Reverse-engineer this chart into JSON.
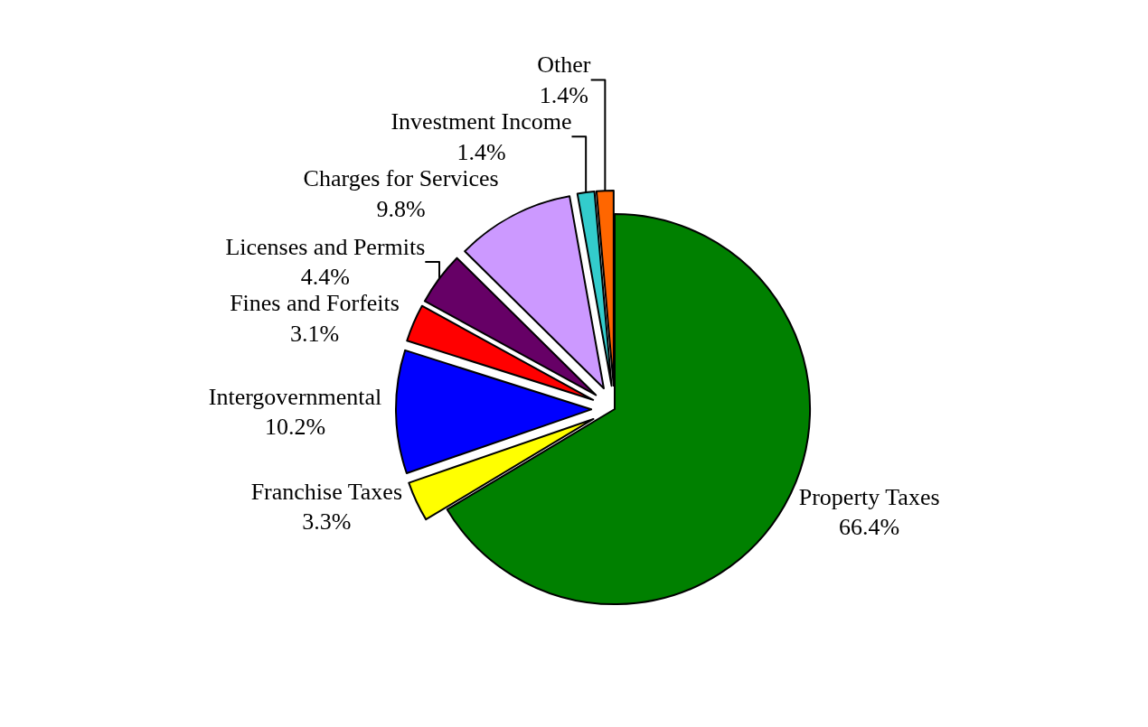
{
  "chart_data": {
    "type": "pie",
    "categories": [
      "Property Taxes",
      "Franchise Taxes",
      "Intergovernmental",
      "Fines and Forfeits",
      "Licenses and Permits",
      "Charges for Services",
      "Investment Income",
      "Other"
    ],
    "values": [
      66.4,
      3.3,
      10.2,
      3.1,
      4.4,
      9.8,
      1.4,
      1.4
    ],
    "value_labels": [
      "66.4%",
      "3.3%",
      "10.2%",
      "3.1%",
      "4.4%",
      "9.8%",
      "1.4%",
      "1.4%"
    ],
    "colors": [
      "#008000",
      "#ffff00",
      "#0000ff",
      "#ff0000",
      "#660066",
      "#cc99ff",
      "#33cccc",
      "#ff6600"
    ],
    "legend": false
  }
}
